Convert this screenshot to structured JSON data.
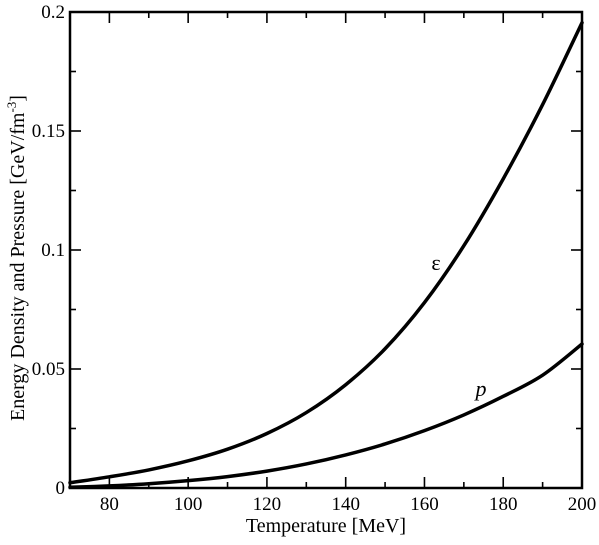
{
  "chart_data": {
    "type": "line",
    "title": "",
    "xlabel": "Temperature [MeV]",
    "ylabel": {
      "main": "Energy Density and Pressure [GeV/fm",
      "superscript": "-3",
      "close": "]"
    },
    "xlim": [
      70,
      200
    ],
    "ylim": [
      0,
      0.2
    ],
    "x_ticks": [
      80,
      100,
      120,
      140,
      160,
      180,
      200
    ],
    "x_tick_labels": [
      "80",
      "100",
      "120",
      "140",
      "160",
      "180",
      "200"
    ],
    "y_ticks": [
      0,
      0.05,
      0.1,
      0.15,
      0.2
    ],
    "y_tick_labels": [
      "0",
      "0.05",
      "0.1",
      "0.15",
      "0.2"
    ],
    "grid": false,
    "series": [
      {
        "label": "ε",
        "x": [
          70,
          80,
          90,
          100,
          110,
          120,
          130,
          140,
          150,
          160,
          170,
          180,
          190,
          200
        ],
        "y": [
          0.0022,
          0.0047,
          0.0076,
          0.0114,
          0.0163,
          0.0229,
          0.0317,
          0.0434,
          0.0585,
          0.0779,
          0.1018,
          0.1299,
          0.1611,
          0.1955
        ]
      },
      {
        "label": "p",
        "x": [
          70,
          80,
          90,
          100,
          110,
          120,
          130,
          140,
          150,
          160,
          170,
          180,
          190,
          200
        ],
        "y": [
          0.0003,
          0.0009,
          0.0018,
          0.0031,
          0.0048,
          0.0071,
          0.0101,
          0.0139,
          0.0185,
          0.0241,
          0.0307,
          0.0385,
          0.0474,
          0.0605
        ]
      }
    ]
  }
}
